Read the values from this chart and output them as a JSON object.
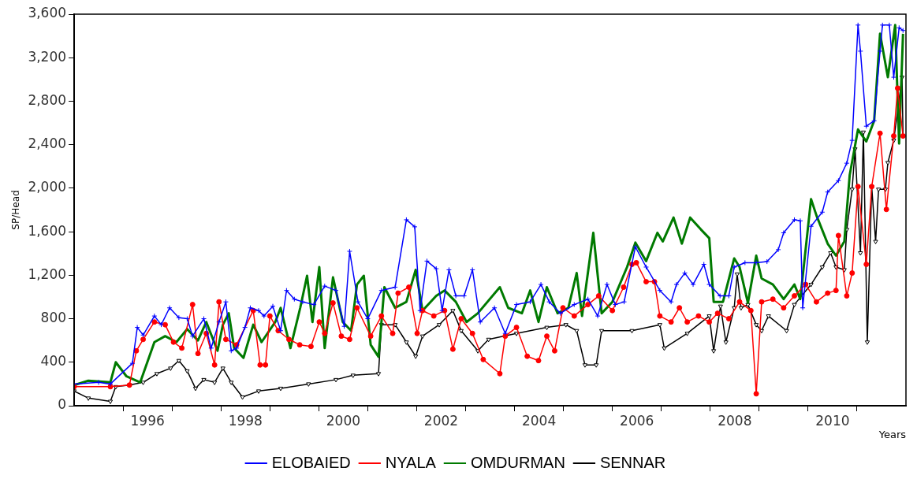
{
  "chart_data": {
    "type": "line",
    "ylabel": "SP/Head",
    "xlabel": "Years",
    "xlim": [
      1995,
      2012
    ],
    "xticks": [
      {
        "value": 1996,
        "label": null
      },
      {
        "value": 1996.5,
        "label": "1996"
      },
      {
        "value": 1997,
        "label": null
      },
      {
        "value": 1998,
        "label": null
      },
      {
        "value": 1998.5,
        "label": "1998"
      },
      {
        "value": 1999,
        "label": null
      },
      {
        "value": 2000,
        "label": null
      },
      {
        "value": 2000.5,
        "label": "2000"
      },
      {
        "value": 2001,
        "label": null
      },
      {
        "value": 2002,
        "label": null
      },
      {
        "value": 2002.5,
        "label": "2002"
      },
      {
        "value": 2003,
        "label": null
      },
      {
        "value": 2004,
        "label": null
      },
      {
        "value": 2004.5,
        "label": "2004"
      },
      {
        "value": 2005,
        "label": null
      },
      {
        "value": 2006,
        "label": null
      },
      {
        "value": 2006.5,
        "label": "2006"
      },
      {
        "value": 2007,
        "label": null
      },
      {
        "value": 2008,
        "label": null
      },
      {
        "value": 2008.5,
        "label": "2008"
      },
      {
        "value": 2009,
        "label": null
      },
      {
        "value": 2010,
        "label": null
      },
      {
        "value": 2010.5,
        "label": "2010"
      },
      {
        "value": 2011,
        "label": null
      }
    ],
    "ylim": [
      0,
      3600
    ],
    "yticks": [
      0,
      400,
      800,
      {
        "value": 1200,
        "label": "1,200"
      },
      {
        "value": 1600,
        "label": "1,600"
      },
      {
        "value": 2000,
        "label": "2,000"
      },
      {
        "value": 2400,
        "label": "2,400"
      },
      {
        "value": 2800,
        "label": "2,800"
      },
      {
        "value": 3200,
        "label": "3,200"
      },
      {
        "value": 3600,
        "label": "3,600"
      }
    ],
    "grid": false,
    "legend": "bottom",
    "line_style": "solid",
    "series": [
      {
        "name": "ELOBAIED",
        "color": "#0000ff",
        "marker": "cross",
        "x": [
          1995,
          1995.5,
          1995.74,
          1996.19,
          1996.29,
          1996.41,
          1996.64,
          1996.78,
          1996.95,
          1997.14,
          1997.31,
          1997.42,
          1997.65,
          1997.8,
          1997.96,
          1998.1,
          1998.21,
          1998.32,
          1998.49,
          1998.6,
          1998.77,
          1998.88,
          1999.06,
          1999.22,
          1999.34,
          1999.5,
          1999.67,
          1999.9,
          2000.12,
          2000.35,
          2000.52,
          2000.63,
          2000.8,
          2001,
          2001.28,
          2001.56,
          2001.79,
          2001.96,
          2002.07,
          2002.21,
          2002.4,
          2002.52,
          2002.66,
          2002.8,
          2002.97,
          2003.14,
          2003.3,
          2003.59,
          2003.81,
          2004.04,
          2004.32,
          2004.54,
          2004.71,
          2004.94,
          2005.22,
          2005.5,
          2005.7,
          2005.89,
          2006.06,
          2006.24,
          2006.47,
          2006.69,
          2006.97,
          2007.2,
          2007.31,
          2007.48,
          2007.65,
          2007.87,
          2007.98,
          2008.2,
          2008.38,
          2008.49,
          2008.71,
          2008.94,
          2009.16,
          2009.39,
          2009.5,
          2009.72,
          2009.84,
          2009.89,
          2010.06,
          2010.29,
          2010.4,
          2010.62,
          2010.79,
          2010.9,
          2011.02,
          2011.07,
          2011.19,
          2011.35,
          2011.47,
          2011.52,
          2011.66,
          2011.75,
          2011.86,
          2011.94
        ],
        "values": [
          200,
          215,
          200,
          390,
          720,
          650,
          825,
          745,
          900,
          810,
          800,
          640,
          800,
          530,
          770,
          955,
          505,
          530,
          720,
          900,
          875,
          825,
          915,
          690,
          1060,
          980,
          955,
          930,
          1100,
          1060,
          730,
          1420,
          955,
          800,
          1060,
          1090,
          1710,
          1645,
          875,
          1330,
          1260,
          875,
          1250,
          1010,
          1010,
          1250,
          770,
          900,
          665,
          930,
          955,
          1115,
          955,
          850,
          930,
          980,
          825,
          1115,
          930,
          955,
          1460,
          1275,
          1060,
          955,
          1115,
          1220,
          1115,
          1300,
          1115,
          1010,
          1010,
          1275,
          1315,
          1315,
          1325,
          1435,
          1590,
          1710,
          1700,
          900,
          1650,
          1780,
          1965,
          2070,
          2230,
          2440,
          3500,
          3260,
          2570,
          2620,
          3260,
          3500,
          3500,
          3020,
          3475,
          3450
        ]
      },
      {
        "name": "NYALA",
        "color": "#ff0000",
        "marker": "circle",
        "x": [
          1995,
          1995.74,
          1996.13,
          1996.27,
          1996.41,
          1996.64,
          1996.86,
          1997.03,
          1997.2,
          1997.42,
          1997.53,
          1997.7,
          1997.87,
          1997.96,
          1998.1,
          1998.32,
          1998.66,
          1998.8,
          1998.91,
          1999,
          1999.17,
          1999.39,
          1999.61,
          1999.84,
          2000.01,
          2000.12,
          2000.29,
          2000.46,
          2000.63,
          2000.78,
          2001.06,
          2001.28,
          2001.51,
          2001.62,
          2001.84,
          2002.01,
          2002.12,
          2002.35,
          2002.57,
          2002.74,
          2002.91,
          2003.14,
          2003.36,
          2003.7,
          2003.81,
          2004.04,
          2004.26,
          2004.49,
          2004.66,
          2004.82,
          2004.99,
          2005.22,
          2005.5,
          2005.72,
          2006,
          2006.23,
          2006.4,
          2006.49,
          2006.69,
          2006.86,
          2006.97,
          2007.2,
          2007.37,
          2007.53,
          2007.76,
          2007.98,
          2008.15,
          2008.38,
          2008.6,
          2008.83,
          2008.94,
          2009.05,
          2009.28,
          2009.5,
          2009.72,
          2009.95,
          2010.17,
          2010.4,
          2010.57,
          2010.62,
          2010.79,
          2010.9,
          2011.02,
          2011.19,
          2011.3,
          2011.47,
          2011.6,
          2011.75,
          2011.83,
          2011.94
        ],
        "values": [
          175,
          175,
          190,
          505,
          610,
          770,
          745,
          585,
          530,
          930,
          480,
          665,
          375,
          955,
          610,
          560,
          875,
          375,
          375,
          825,
          690,
          610,
          560,
          545,
          770,
          665,
          945,
          640,
          610,
          900,
          640,
          825,
          665,
          1035,
          1090,
          665,
          875,
          825,
          875,
          520,
          800,
          665,
          425,
          295,
          640,
          720,
          455,
          415,
          640,
          505,
          900,
          825,
          930,
          1010,
          875,
          1090,
          1300,
          1315,
          1140,
          1140,
          825,
          770,
          900,
          770,
          825,
          770,
          850,
          800,
          955,
          875,
          110,
          955,
          980,
          900,
          1010,
          1115,
          955,
          1035,
          1060,
          1565,
          1010,
          1220,
          2015,
          1300,
          2015,
          2505,
          1805,
          2480,
          2920,
          2480
        ]
      },
      {
        "name": "OMDURMAN",
        "color": "#007a00",
        "marker": "none",
        "x": [
          1995,
          1995.29,
          1995.74,
          1995.85,
          1996.07,
          1996.35,
          1996.64,
          1996.86,
          1997.09,
          1997.31,
          1997.53,
          1997.7,
          1997.93,
          1998.04,
          1998.16,
          1998.27,
          1998.46,
          1998.66,
          1998.83,
          1999.11,
          1999.22,
          1999.42,
          1999.62,
          1999.76,
          1999.87,
          2000.01,
          2000.12,
          2000.29,
          2000.49,
          2000.66,
          2000.78,
          2000.92,
          2001.06,
          2001.22,
          2001.34,
          2001.56,
          2001.79,
          2001.98,
          2002.12,
          2002.4,
          2002.57,
          2002.8,
          2003.02,
          2003.25,
          2003.7,
          2003.87,
          2004.15,
          2004.32,
          2004.49,
          2004.66,
          2004.88,
          2005.1,
          2005.27,
          2005.38,
          2005.61,
          2005.78,
          2006,
          2006.3,
          2006.47,
          2006.69,
          2006.92,
          2007.03,
          2007.25,
          2007.42,
          2007.59,
          2007.81,
          2007.98,
          2008.07,
          2008.26,
          2008.49,
          2008.6,
          2008.77,
          2008.94,
          2009.05,
          2009.28,
          2009.5,
          2009.72,
          2009.84,
          2010.06,
          2010.17,
          2010.4,
          2010.57,
          2010.74,
          2010.85,
          2011.02,
          2011.19,
          2011.35,
          2011.47,
          2011.63,
          2011.78,
          2011.86,
          2011.94
        ],
        "values": [
          190,
          230,
          215,
          400,
          270,
          215,
          585,
          640,
          585,
          705,
          600,
          770,
          505,
          745,
          850,
          530,
          440,
          745,
          585,
          770,
          900,
          530,
          900,
          1195,
          770,
          1275,
          530,
          1180,
          770,
          690,
          1115,
          1195,
          560,
          450,
          1090,
          900,
          955,
          1250,
          875,
          1010,
          1060,
          955,
          770,
          850,
          1090,
          900,
          850,
          1060,
          770,
          1090,
          850,
          900,
          1220,
          825,
          1590,
          850,
          955,
          1275,
          1500,
          1330,
          1590,
          1510,
          1730,
          1490,
          1730,
          1620,
          1540,
          955,
          955,
          1355,
          1275,
          945,
          1380,
          1170,
          1115,
          980,
          1115,
          980,
          1900,
          1750,
          1490,
          1380,
          1510,
          2120,
          2540,
          2430,
          2620,
          3420,
          3020,
          3500,
          2410,
          3420
        ]
      },
      {
        "name": "SENNAR",
        "color": "#000000",
        "marker": "triangle",
        "x": [
          1995,
          1995.29,
          1995.74,
          1995.85,
          1996.13,
          1996.41,
          1996.69,
          1996.97,
          1997.14,
          1997.31,
          1997.48,
          1997.65,
          1997.87,
          1998.04,
          1998.21,
          1998.44,
          1998.77,
          1999.22,
          1999.79,
          2000.35,
          2000.7,
          2001.22,
          2001.28,
          2001.56,
          2001.79,
          2001.98,
          2002.12,
          2002.46,
          2002.74,
          2002.91,
          2003.25,
          2003.47,
          2004.04,
          2004.66,
          2005.05,
          2005.27,
          2005.44,
          2005.67,
          2005.78,
          2006.4,
          2006.97,
          2007.06,
          2007.53,
          2007.98,
          2008.07,
          2008.21,
          2008.32,
          2008.49,
          2008.55,
          2008.63,
          2008.77,
          2008.94,
          2009.05,
          2009.19,
          2009.56,
          2009.72,
          2010.06,
          2010.29,
          2010.46,
          2010.57,
          2010.74,
          2010.79,
          2010.9,
          2010.96,
          2011.07,
          2011.13,
          2011.21,
          2011.3,
          2011.38,
          2011.44,
          2011.58,
          2011.63,
          2011.75,
          2011.92,
          2011.94
        ],
        "values": [
          135,
          70,
          40,
          175,
          190,
          215,
          295,
          345,
          415,
          320,
          160,
          240,
          215,
          345,
          215,
          80,
          135,
          160,
          200,
          240,
          280,
          295,
          745,
          745,
          585,
          455,
          640,
          745,
          875,
          690,
          505,
          610,
          665,
          720,
          745,
          690,
          375,
          375,
          690,
          690,
          745,
          530,
          665,
          825,
          505,
          915,
          585,
          900,
          1210,
          900,
          930,
          745,
          690,
          825,
          690,
          930,
          1115,
          1275,
          1405,
          1275,
          1250,
          1620,
          1990,
          2360,
          1405,
          2515,
          585,
          2015,
          1510,
          1990,
          1990,
          2235,
          2440,
          3020,
          2480
        ]
      }
    ]
  }
}
